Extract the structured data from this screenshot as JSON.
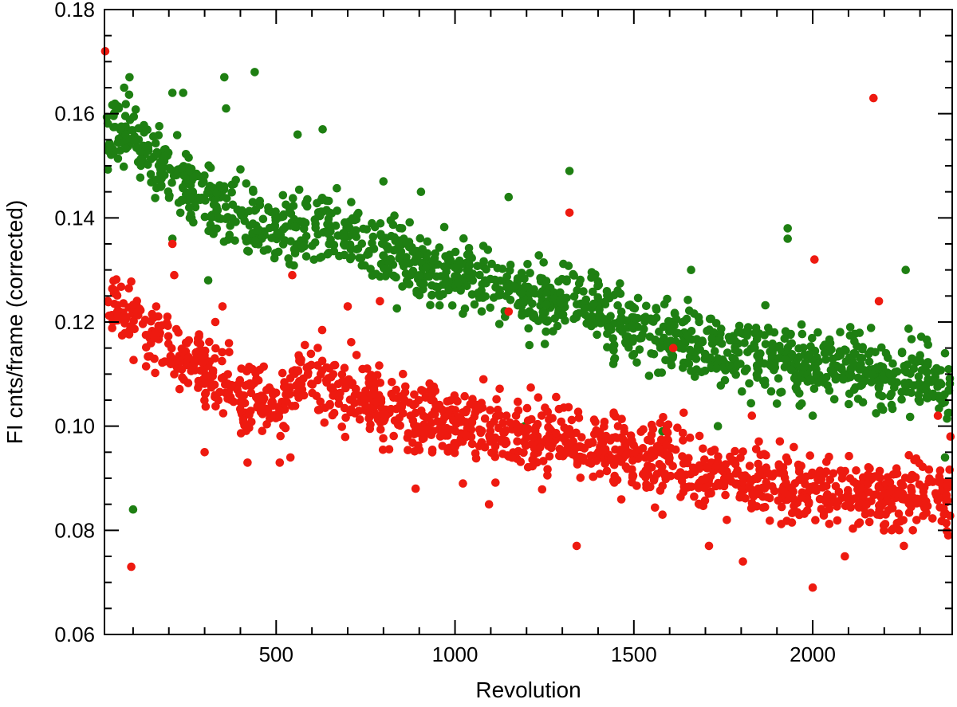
{
  "chart_data": {
    "type": "scatter",
    "title": "",
    "xlabel": "Revolution",
    "ylabel": "FI cnts/frame (corrected)",
    "xlim": [
      20,
      2390
    ],
    "ylim": [
      0.06,
      0.18
    ],
    "xticks": [
      500,
      1000,
      1500,
      2000
    ],
    "xtick_labels": [
      "500",
      "1000",
      "1500",
      "2000"
    ],
    "yticks": [
      0.06,
      0.08,
      0.1,
      0.12,
      0.14,
      0.16,
      0.18
    ],
    "ytick_labels": [
      "0.06",
      "0.08",
      "0.10",
      "0.12",
      "0.14",
      "0.16",
      "0.18"
    ],
    "grid": false,
    "legend": "none",
    "series": [
      {
        "color": "#1e7f12",
        "trend": [
          [
            30,
            0.156
          ],
          [
            100,
            0.155
          ],
          [
            200,
            0.149
          ],
          [
            300,
            0.144
          ],
          [
            400,
            0.14
          ],
          [
            500,
            0.138
          ],
          [
            600,
            0.138
          ],
          [
            700,
            0.137
          ],
          [
            800,
            0.133
          ],
          [
            900,
            0.131
          ],
          [
            1000,
            0.129
          ],
          [
            1100,
            0.127
          ],
          [
            1200,
            0.125
          ],
          [
            1300,
            0.124
          ],
          [
            1400,
            0.122
          ],
          [
            1500,
            0.119
          ],
          [
            1600,
            0.117
          ],
          [
            1700,
            0.116
          ],
          [
            1800,
            0.114
          ],
          [
            1900,
            0.113
          ],
          [
            2000,
            0.112
          ],
          [
            2100,
            0.111
          ],
          [
            2200,
            0.11
          ],
          [
            2300,
            0.109
          ],
          [
            2390,
            0.107
          ]
        ],
        "outliers": [
          [
            60,
            0.161
          ],
          [
            75,
            0.165
          ],
          [
            90,
            0.167
          ],
          [
            100,
            0.084
          ],
          [
            210,
            0.164
          ],
          [
            240,
            0.164
          ],
          [
            210,
            0.136
          ],
          [
            310,
            0.128
          ],
          [
            355,
            0.167
          ],
          [
            360,
            0.161
          ],
          [
            440,
            0.168
          ],
          [
            560,
            0.156
          ],
          [
            630,
            0.157
          ],
          [
            800,
            0.147
          ],
          [
            905,
            0.145
          ],
          [
            1150,
            0.144
          ],
          [
            1195,
            0.1
          ],
          [
            1320,
            0.149
          ],
          [
            1660,
            0.13
          ],
          [
            1735,
            0.1
          ],
          [
            1580,
            0.099
          ],
          [
            1930,
            0.138
          ],
          [
            1930,
            0.136
          ],
          [
            2000,
            0.102
          ],
          [
            2260,
            0.13
          ],
          [
            2370,
            0.114
          ],
          [
            2370,
            0.094
          ]
        ]
      },
      {
        "color": "#ee1a10",
        "trend": [
          [
            30,
            0.124
          ],
          [
            100,
            0.121
          ],
          [
            200,
            0.116
          ],
          [
            300,
            0.111
          ],
          [
            400,
            0.106
          ],
          [
            500,
            0.105
          ],
          [
            550,
            0.109
          ],
          [
            600,
            0.109
          ],
          [
            700,
            0.107
          ],
          [
            800,
            0.104
          ],
          [
            900,
            0.102
          ],
          [
            1000,
            0.1
          ],
          [
            1100,
            0.099
          ],
          [
            1200,
            0.098
          ],
          [
            1300,
            0.097
          ],
          [
            1400,
            0.095
          ],
          [
            1500,
            0.094
          ],
          [
            1600,
            0.093
          ],
          [
            1700,
            0.091
          ],
          [
            1800,
            0.09
          ],
          [
            1900,
            0.089
          ],
          [
            2000,
            0.088
          ],
          [
            2100,
            0.088
          ],
          [
            2200,
            0.087
          ],
          [
            2300,
            0.087
          ],
          [
            2390,
            0.087
          ]
        ],
        "outliers": [
          [
            22,
            0.172
          ],
          [
            95,
            0.073
          ],
          [
            210,
            0.135
          ],
          [
            215,
            0.129
          ],
          [
            300,
            0.095
          ],
          [
            350,
            0.123
          ],
          [
            330,
            0.12
          ],
          [
            420,
            0.093
          ],
          [
            510,
            0.093
          ],
          [
            540,
            0.094
          ],
          [
            545,
            0.129
          ],
          [
            700,
            0.123
          ],
          [
            790,
            0.124
          ],
          [
            890,
            0.088
          ],
          [
            1095,
            0.085
          ],
          [
            1150,
            0.122
          ],
          [
            1320,
            0.141
          ],
          [
            1340,
            0.077
          ],
          [
            1580,
            0.083
          ],
          [
            1610,
            0.115
          ],
          [
            1710,
            0.077
          ],
          [
            1760,
            0.082
          ],
          [
            1805,
            0.074
          ],
          [
            1830,
            0.102
          ],
          [
            2000,
            0.069
          ],
          [
            2005,
            0.132
          ],
          [
            2090,
            0.075
          ],
          [
            2170,
            0.163
          ],
          [
            2185,
            0.124
          ],
          [
            2255,
            0.077
          ],
          [
            2280,
            0.08
          ],
          [
            2350,
            0.102
          ],
          [
            2385,
            0.098
          ]
        ]
      }
    ]
  }
}
